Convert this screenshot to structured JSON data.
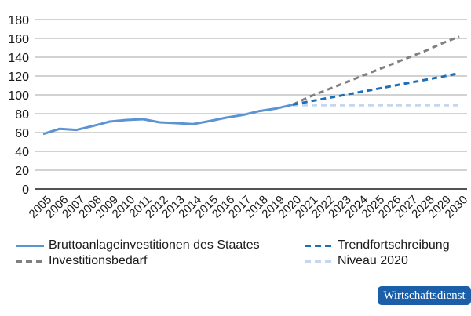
{
  "chart_data": {
    "type": "line",
    "title": "",
    "xlabel": "",
    "ylabel": "",
    "ylim": [
      0,
      180
    ],
    "yticks": [
      0,
      20,
      40,
      60,
      80,
      100,
      120,
      140,
      160,
      180
    ],
    "grid": true,
    "legend_position": "bottom",
    "x": [
      "2005",
      "2006",
      "2007",
      "2008",
      "2009",
      "2010",
      "2011",
      "2012",
      "2013",
      "2014",
      "2015",
      "2016",
      "2017",
      "2018",
      "2019",
      "2020",
      "2021",
      "2022",
      "2023",
      "2024",
      "2025",
      "2026",
      "2027",
      "2028",
      "2029",
      "2030"
    ],
    "series": [
      {
        "name": "Bruttoanlageinvestitionen des Staates",
        "style": "solid",
        "color": "#5b93d3",
        "x": [
          "2005",
          "2006",
          "2007",
          "2008",
          "2009",
          "2010",
          "2011",
          "2012",
          "2013",
          "2014",
          "2015",
          "2016",
          "2017",
          "2018",
          "2019",
          "2020"
        ],
        "values": [
          58.5,
          64,
          62.8,
          67,
          71.7,
          73.3,
          74.2,
          70.8,
          70,
          69,
          72.2,
          75.8,
          78.6,
          82.8,
          85.5,
          89.7
        ]
      },
      {
        "name": "Investitionsbedarf",
        "style": "dashed",
        "color": "#808080",
        "x": [
          "2020",
          "2021",
          "2022",
          "2023",
          "2024",
          "2025",
          "2026",
          "2027",
          "2028",
          "2029",
          "2030"
        ],
        "values": [
          89.7,
          98,
          105,
          112,
          119,
          126,
          133,
          140,
          147,
          155,
          162
        ]
      },
      {
        "name": "Trendfortschreibung",
        "style": "dashed",
        "color": "#1a6fb8",
        "x": [
          "2020",
          "2021",
          "2022",
          "2023",
          "2024",
          "2025",
          "2026",
          "2027",
          "2028",
          "2029",
          "2030"
        ],
        "values": [
          89.7,
          93,
          96.3,
          99.6,
          102.9,
          106.2,
          109.5,
          112.8,
          116.1,
          119.4,
          123
        ]
      },
      {
        "name": "Niveau 2020",
        "style": "dashed",
        "color": "#c5d6ee",
        "x": [
          "2020",
          "2021",
          "2022",
          "2023",
          "2024",
          "2025",
          "2026",
          "2027",
          "2028",
          "2029",
          "2030"
        ],
        "values": [
          89,
          89,
          89,
          89,
          89,
          89,
          89,
          89,
          89,
          89,
          89
        ]
      }
    ]
  },
  "legend": {
    "items": [
      {
        "label": "Bruttoanlageinvestitionen des Staates",
        "color": "#5b93d3",
        "style": "solid"
      },
      {
        "label": "Trendfortschreibung",
        "color": "#1a6fb8",
        "style": "dashed"
      },
      {
        "label": "Investitionsbedarf",
        "color": "#808080",
        "style": "dashed"
      },
      {
        "label": "Niveau 2020",
        "color": "#c5d6ee",
        "style": "dashed"
      }
    ]
  },
  "badge": {
    "label": "Wirtschaftsdienst",
    "color": "#1a5fa8"
  }
}
